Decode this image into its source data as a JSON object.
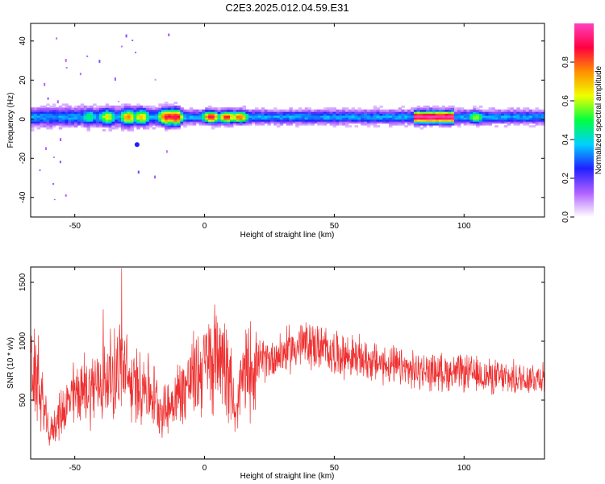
{
  "title": "C2E3.2025.012.04.59.E31",
  "colors": {
    "snr_line": "#ef3030",
    "axis": "#000000",
    "background": "#ffffff"
  },
  "chart_data": [
    {
      "type": "heatmap",
      "title": "",
      "xlabel": "Height of straight line (km)",
      "ylabel": "Frequency (Hz)",
      "xlim": [
        -67,
        131
      ],
      "ylim": [
        -50,
        49
      ],
      "xticks": [
        -50,
        0,
        50,
        100
      ],
      "yticks": [
        -40,
        -20,
        0,
        20,
        40
      ],
      "colorbar": {
        "label": "Normalized spectral amplitude",
        "range": [
          0,
          1
        ],
        "ticks": [
          "0.0",
          "0.2",
          "0.4",
          "0.6",
          "0.8"
        ],
        "colormap": [
          "#ffffff",
          "#b060ff",
          "#2020ff",
          "#00d0ff",
          "#00ff40",
          "#f0ff00",
          "#ff9000",
          "#ff0040",
          "#ff40c0"
        ]
      },
      "band_center_hz": 0.8,
      "peaks": [
        {
          "x": -58,
          "amp": 0.3
        },
        {
          "x": -45,
          "amp": 0.5
        },
        {
          "x": -38,
          "amp": 0.65
        },
        {
          "x": -30,
          "amp": 0.75
        },
        {
          "x": -25,
          "amp": 0.7
        },
        {
          "x": -15,
          "amp": 0.9
        },
        {
          "x": -12,
          "amp": 0.95
        },
        {
          "x": 2,
          "amp": 0.9
        },
        {
          "x": 8,
          "amp": 0.85
        },
        {
          "x": 13,
          "amp": 0.8
        },
        {
          "x": 84,
          "amp": 1.0
        },
        {
          "x": 92,
          "amp": 1.0
        },
        {
          "x": 104,
          "amp": 0.6
        }
      ],
      "isolated_features": [
        {
          "x": -26,
          "y": -13,
          "amp": 0.25
        }
      ]
    },
    {
      "type": "line",
      "title": "",
      "xlabel": "Height of straight line (km)",
      "ylabel": "SNR (10 * v/v)",
      "xlim": [
        -67,
        131
      ],
      "ylim": [
        0,
        1630
      ],
      "xticks": [
        -50,
        0,
        50,
        100
      ],
      "yticks": [
        500,
        1000,
        1500
      ],
      "series": [
        {
          "x": [
            -67,
            -62,
            -60,
            -55,
            -50,
            -45,
            -40,
            -36,
            -32,
            -28,
            -24,
            -20,
            -16,
            -12,
            -8,
            -4,
            0,
            4,
            8,
            10,
            12,
            14,
            18,
            25,
            30,
            35,
            40,
            50,
            60,
            70,
            80,
            90,
            100,
            110,
            120,
            131
          ],
          "y": [
            800,
            450,
            200,
            400,
            550,
            600,
            650,
            700,
            800,
            600,
            650,
            550,
            400,
            500,
            600,
            700,
            800,
            850,
            900,
            700,
            300,
            650,
            800,
            850,
            900,
            950,
            980,
            900,
            850,
            800,
            750,
            740,
            730,
            700,
            680,
            700
          ],
          "spikes": [
            {
              "x": -32,
              "y": 1620
            },
            {
              "x": -39,
              "y": 1270
            },
            {
              "x": -64,
              "y": 1050
            },
            {
              "x": 5,
              "y": 1160
            },
            {
              "x": 37,
              "y": 1130
            }
          ]
        }
      ]
    }
  ]
}
